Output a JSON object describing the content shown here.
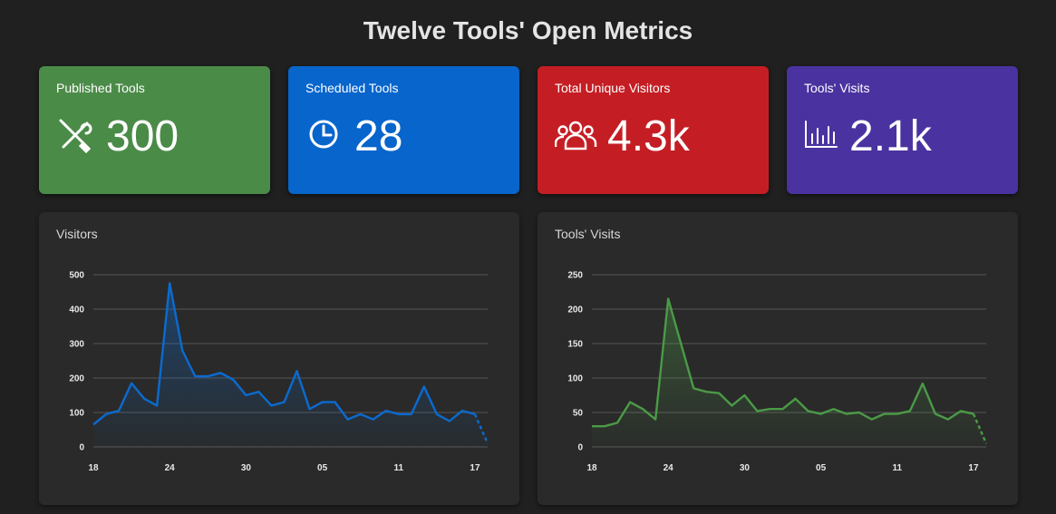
{
  "page": {
    "title": "Twelve Tools' Open Metrics"
  },
  "stats": [
    {
      "label": "Published Tools",
      "value": "300",
      "icon": "tools-icon",
      "color": "#4b8b48"
    },
    {
      "label": "Scheduled Tools",
      "value": "28",
      "icon": "clock-icon",
      "color": "#0765cc"
    },
    {
      "label": "Total Unique Visitors",
      "value": "4.3k",
      "icon": "users-icon",
      "color": "#c41e24"
    },
    {
      "label": "Tools' Visits",
      "value": "2.1k",
      "icon": "bar-chart-icon",
      "color": "#4a33a0"
    }
  ],
  "chart_data": [
    {
      "type": "area",
      "title": "Visitors",
      "color": "#0b6bd0",
      "ylim": [
        0,
        500
      ],
      "yticks": [
        0,
        100,
        200,
        300,
        400,
        500
      ],
      "xticks": [
        "18",
        "24",
        "30",
        "05",
        "11",
        "17"
      ],
      "xtick_index": [
        0,
        6,
        12,
        18,
        24,
        30
      ],
      "values": [
        65,
        95,
        105,
        185,
        140,
        120,
        475,
        280,
        205,
        205,
        215,
        195,
        150,
        160,
        120,
        130,
        220,
        110,
        130,
        130,
        80,
        95,
        80,
        105,
        95,
        95,
        175,
        95,
        75,
        105,
        95,
        10
      ],
      "dashed_last_segment": true,
      "grid": true
    },
    {
      "type": "area",
      "title": "Tools' Visits",
      "color": "#4b9a46",
      "ylim": [
        0,
        250
      ],
      "yticks": [
        0,
        50,
        100,
        150,
        200,
        250
      ],
      "xticks": [
        "18",
        "24",
        "30",
        "05",
        "11",
        "17"
      ],
      "xtick_index": [
        0,
        6,
        12,
        18,
        24,
        30
      ],
      "values": [
        30,
        30,
        35,
        65,
        55,
        40,
        215,
        150,
        85,
        80,
        78,
        60,
        75,
        52,
        55,
        55,
        70,
        52,
        48,
        55,
        48,
        50,
        40,
        48,
        48,
        52,
        92,
        48,
        40,
        52,
        48,
        5
      ],
      "dashed_last_segment": true,
      "grid": true
    }
  ]
}
